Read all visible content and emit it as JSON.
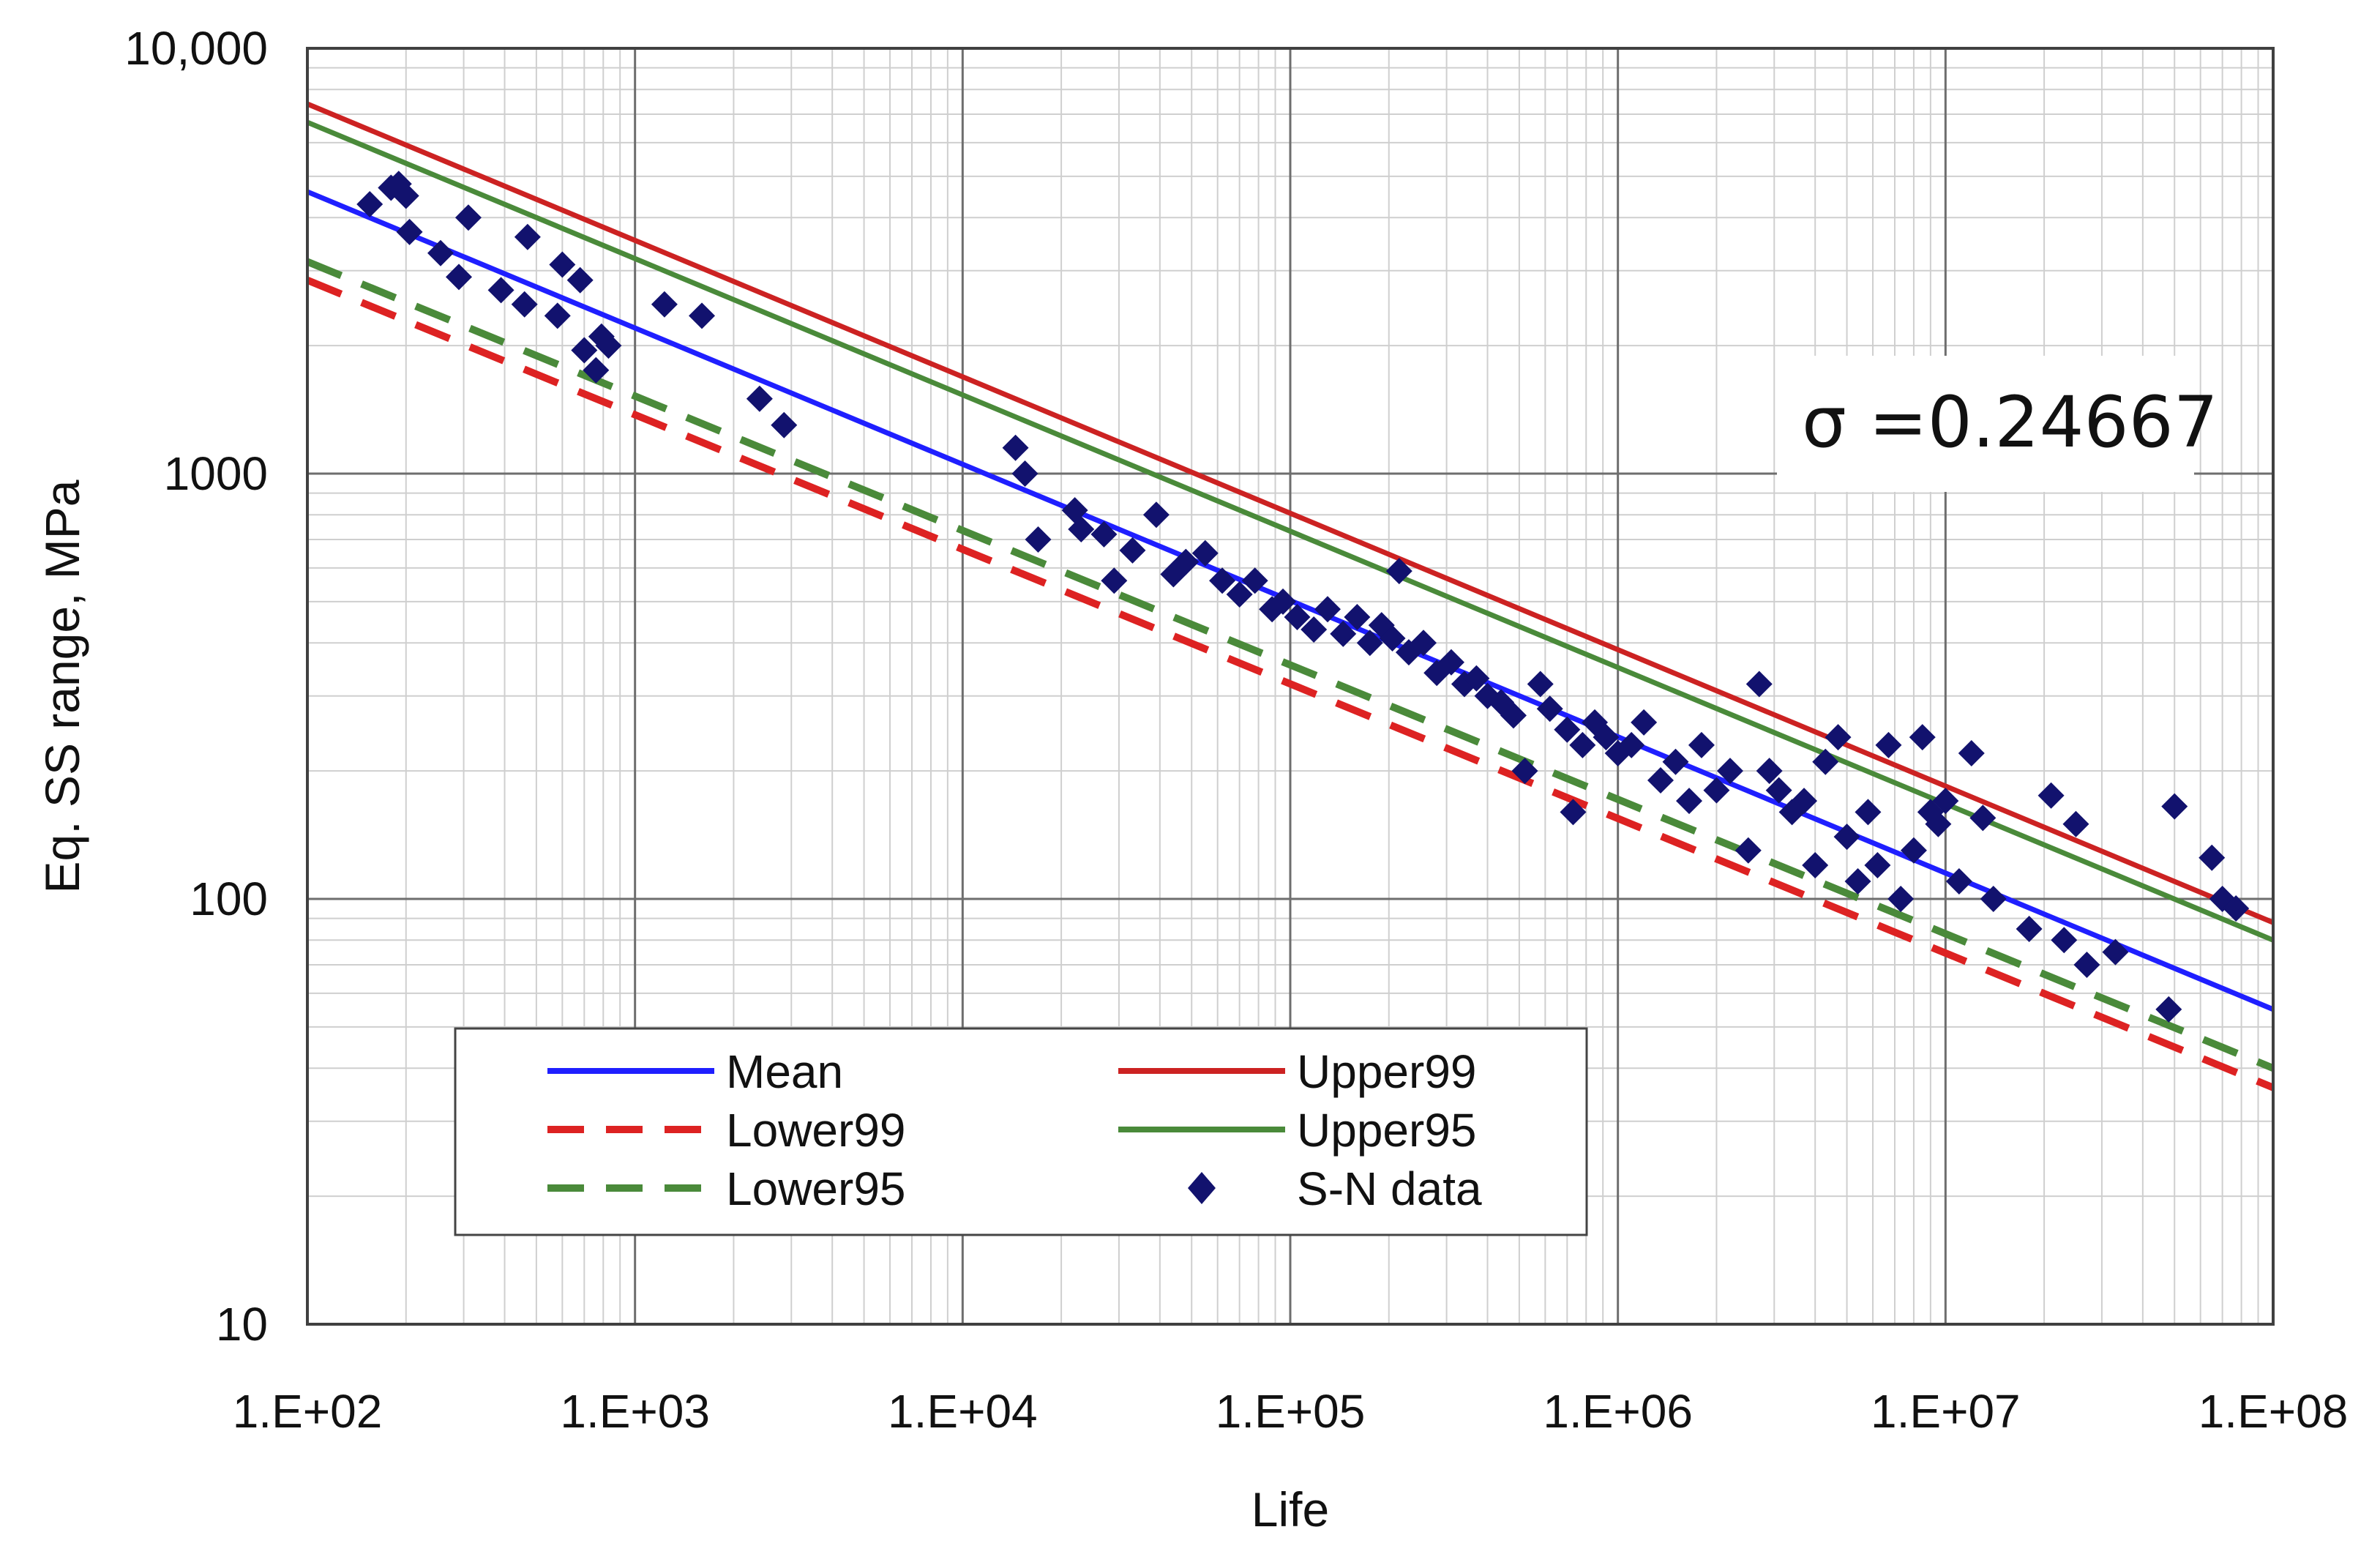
{
  "chart_data": {
    "type": "scatter",
    "title": "",
    "xlabel": "Life",
    "ylabel": "Eq. SS range, MPa",
    "xscale": "log",
    "yscale": "log",
    "xlim": [
      100,
      100000000
    ],
    "ylim": [
      10,
      10000
    ],
    "grid": true,
    "x_tick_labels": [
      "1.E+02",
      "1.E+03",
      "1.E+04",
      "1.E+05",
      "1.E+06",
      "1.E+07",
      "1.E+08"
    ],
    "y_tick_labels": [
      "10",
      "100",
      "1000",
      "10,000"
    ],
    "annotation": "σ =0.24667",
    "legend_position": "lower-left",
    "series": [
      {
        "name": "Mean",
        "style": "solid",
        "color": "#1f1fff",
        "x": [
          100,
          100000000
        ],
        "y": [
          4600,
          55
        ]
      },
      {
        "name": "Upper99",
        "style": "solid",
        "color": "#cc2222",
        "x": [
          100,
          100000000
        ],
        "y": [
          7400,
          88
        ]
      },
      {
        "name": "Lower99",
        "style": "dashed",
        "color": "#dd2222",
        "x": [
          100,
          100000000
        ],
        "y": [
          2850,
          36
        ]
      },
      {
        "name": "Upper95",
        "style": "solid",
        "color": "#4a8a3a",
        "x": [
          100,
          100000000
        ],
        "y": [
          6700,
          80
        ]
      },
      {
        "name": "Lower95",
        "style": "dashed",
        "color": "#4a8a3a",
        "x": [
          100,
          100000000
        ],
        "y": [
          3150,
          40
        ]
      },
      {
        "name": "S-N data",
        "style": "marker",
        "color": "#12126e",
        "x": [
          155,
          180,
          190,
          200,
          205,
          255,
          290,
          310,
          390,
          460,
          470,
          580,
          600,
          680,
          700,
          760,
          790,
          830,
          1230,
          1600,
          2400,
          2850,
          14500,
          15500,
          17000,
          22000,
          23000,
          27000,
          29000,
          33000,
          39000,
          44000,
          48000,
          55000,
          62000,
          70000,
          78000,
          88000,
          95000,
          105000,
          118000,
          130000,
          145000,
          160000,
          175000,
          190000,
          205000,
          215000,
          230000,
          255000,
          280000,
          310000,
          340000,
          370000,
          400000,
          440000,
          480000,
          520000,
          580000,
          620000,
          700000,
          730000,
          780000,
          850000,
          920000,
          1000000,
          1100000,
          1200000,
          1350000,
          1500000,
          1650000,
          1800000,
          2000000,
          2200000,
          2500000,
          2700000,
          2900000,
          3100000,
          3400000,
          3700000,
          4000000,
          4300000,
          4700000,
          5000000,
          5400000,
          5800000,
          6200000,
          6700000,
          7300000,
          8000000,
          8500000,
          9000000,
          9500000,
          10000000,
          11000000,
          12000000,
          13000000,
          14000000,
          18000000,
          21000000,
          23000000,
          25000000,
          27000000,
          33000000,
          48000000,
          50000000,
          65000000,
          70000000,
          77000000
        ],
        "y": [
          4300,
          4700,
          4800,
          4500,
          3700,
          3300,
          2900,
          4000,
          2700,
          2500,
          3600,
          2350,
          3100,
          2850,
          1950,
          1750,
          2100,
          2000,
          2500,
          2350,
          1500,
          1300,
          1150,
          1000,
          700,
          820,
          740,
          720,
          560,
          660,
          800,
          580,
          620,
          650,
          560,
          520,
          560,
          480,
          500,
          460,
          430,
          480,
          420,
          460,
          400,
          440,
          410,
          590,
          380,
          400,
          340,
          360,
          320,
          330,
          300,
          290,
          270,
          200,
          320,
          280,
          250,
          160,
          230,
          260,
          240,
          220,
          230,
          260,
          190,
          210,
          170,
          230,
          180,
          200,
          130,
          320,
          200,
          180,
          160,
          170,
          120,
          210,
          240,
          140,
          110,
          160,
          120,
          230,
          100,
          130,
          240,
          160,
          150,
          170,
          110,
          220,
          155,
          100,
          85,
          175,
          80,
          150,
          70,
          75,
          55,
          165,
          125,
          100,
          95
        ]
      }
    ]
  }
}
